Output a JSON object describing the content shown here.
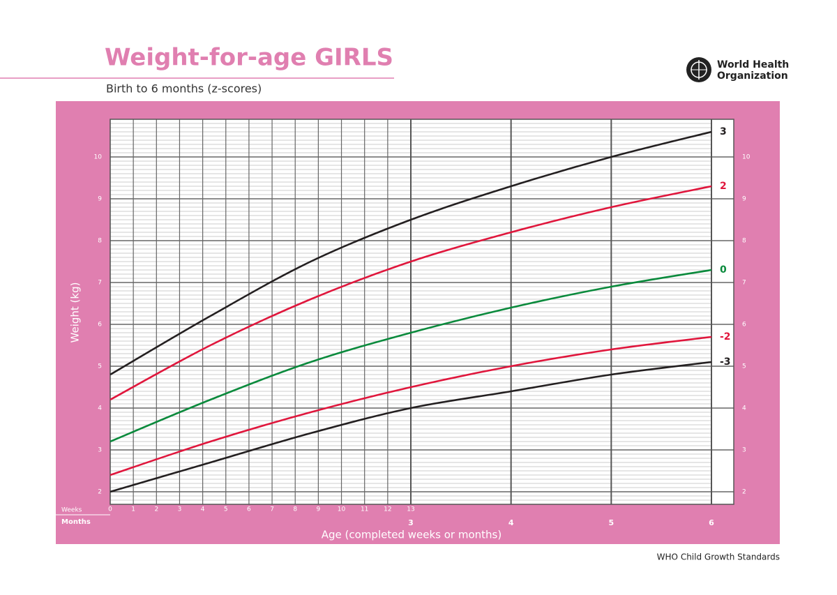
{
  "chart_data": {
    "type": "line",
    "title": "Weight-for-age GIRLS",
    "subtitle": "Birth to 6 months (z-scores)",
    "organization": [
      "World Health",
      "Organization"
    ],
    "footer": "WHO Child Growth Standards",
    "ylabel": "Weight (kg)",
    "xlabel": "Age (completed weeks or months)",
    "x": [
      0,
      1,
      2,
      3,
      4,
      5,
      6
    ],
    "xlim": [
      0,
      6
    ],
    "xticks": [
      3,
      4,
      5,
      6
    ],
    "x_axis_name": "Months",
    "weeks_axis": {
      "name": "Weeks",
      "lim": [
        0,
        26
      ],
      "ticks": [
        0,
        1,
        2,
        3,
        4,
        5,
        6,
        7,
        8,
        9,
        10,
        11,
        12,
        13
      ]
    },
    "ylim": [
      1.7,
      10.9
    ],
    "yticks": [
      2,
      3,
      4,
      5,
      6,
      7,
      8,
      9,
      10
    ],
    "grid": true,
    "series": [
      {
        "name": "3",
        "color": "#231f20",
        "values": [
          4.8,
          6.2,
          7.5,
          8.5,
          9.3,
          10.0,
          10.6
        ]
      },
      {
        "name": "2",
        "color": "#e0163c",
        "values": [
          4.2,
          5.5,
          6.6,
          7.5,
          8.2,
          8.8,
          9.3
        ]
      },
      {
        "name": "0",
        "color": "#0a8a3c",
        "values": [
          3.2,
          4.2,
          5.1,
          5.8,
          6.4,
          6.9,
          7.3
        ]
      },
      {
        "name": "-2",
        "color": "#e0163c",
        "values": [
          2.4,
          3.2,
          3.9,
          4.5,
          5.0,
          5.4,
          5.7
        ]
      },
      {
        "name": "-3",
        "color": "#231f20",
        "values": [
          2.0,
          2.7,
          3.4,
          4.0,
          4.4,
          4.8,
          5.1
        ]
      }
    ]
  }
}
